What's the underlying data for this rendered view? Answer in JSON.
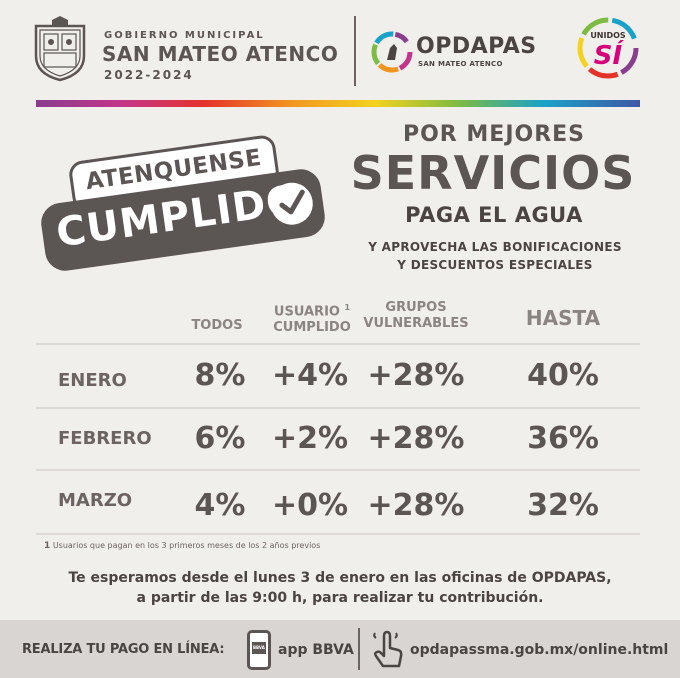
{
  "header": {
    "gov_line1": "GOBIERNO MUNICIPAL",
    "gov_line2": "SAN MATEO ATENCO",
    "gov_years": "2022-2024",
    "opdapas_name": "OPDAPAS",
    "opdapas_sub": "SAN MATEO ATENCO",
    "unidos_top": "UNIDOS",
    "unidos_main": "SÍ"
  },
  "badge": {
    "line1": "ATENQUENSE",
    "line2": "CUMPLIDO"
  },
  "headline": {
    "line1": "POR MEJORES",
    "line2": "SERVICIOS",
    "line3": "PAGA EL AGUA",
    "line4": "Y APROVECHA LAS BONIFICACIONES",
    "line5": "Y DESCUENTOS ESPECIALES"
  },
  "table": {
    "columns": {
      "todos": "TODOS",
      "usuario_line1": "USUARIO",
      "usuario_sup": "1",
      "usuario_line2": "CUMPLIDO",
      "grupos_line1": "GRUPOS",
      "grupos_line2": "VULNERABLES",
      "hasta": "HASTA"
    },
    "rows": [
      {
        "month": "ENERO",
        "todos": "8%",
        "usuario": "+4%",
        "grupos": "+28%",
        "hasta": "40%"
      },
      {
        "month": "FEBRERO",
        "todos": "6%",
        "usuario": "+2%",
        "grupos": "+28%",
        "hasta": "36%"
      },
      {
        "month": "MARZO",
        "todos": "4%",
        "usuario": "+0%",
        "grupos": "+28%",
        "hasta": "32%"
      }
    ]
  },
  "footnote": {
    "num": "1",
    "text": "Usuarios que pagan en los 3 primeros meses de los 2 años previos"
  },
  "info": {
    "line1": "Te esperamos desde el lunes 3 de enero en las oficinas de OPDAPAS,",
    "line2": "a partir de las 9:00 h, para realizar tu contribución."
  },
  "footer": {
    "realiza": "REALIZA TU PAGO EN LÍNEA:",
    "phone_label": "BBVA",
    "app": "app BBVA",
    "url": "opdapassma.gob.mx/online.html"
  }
}
